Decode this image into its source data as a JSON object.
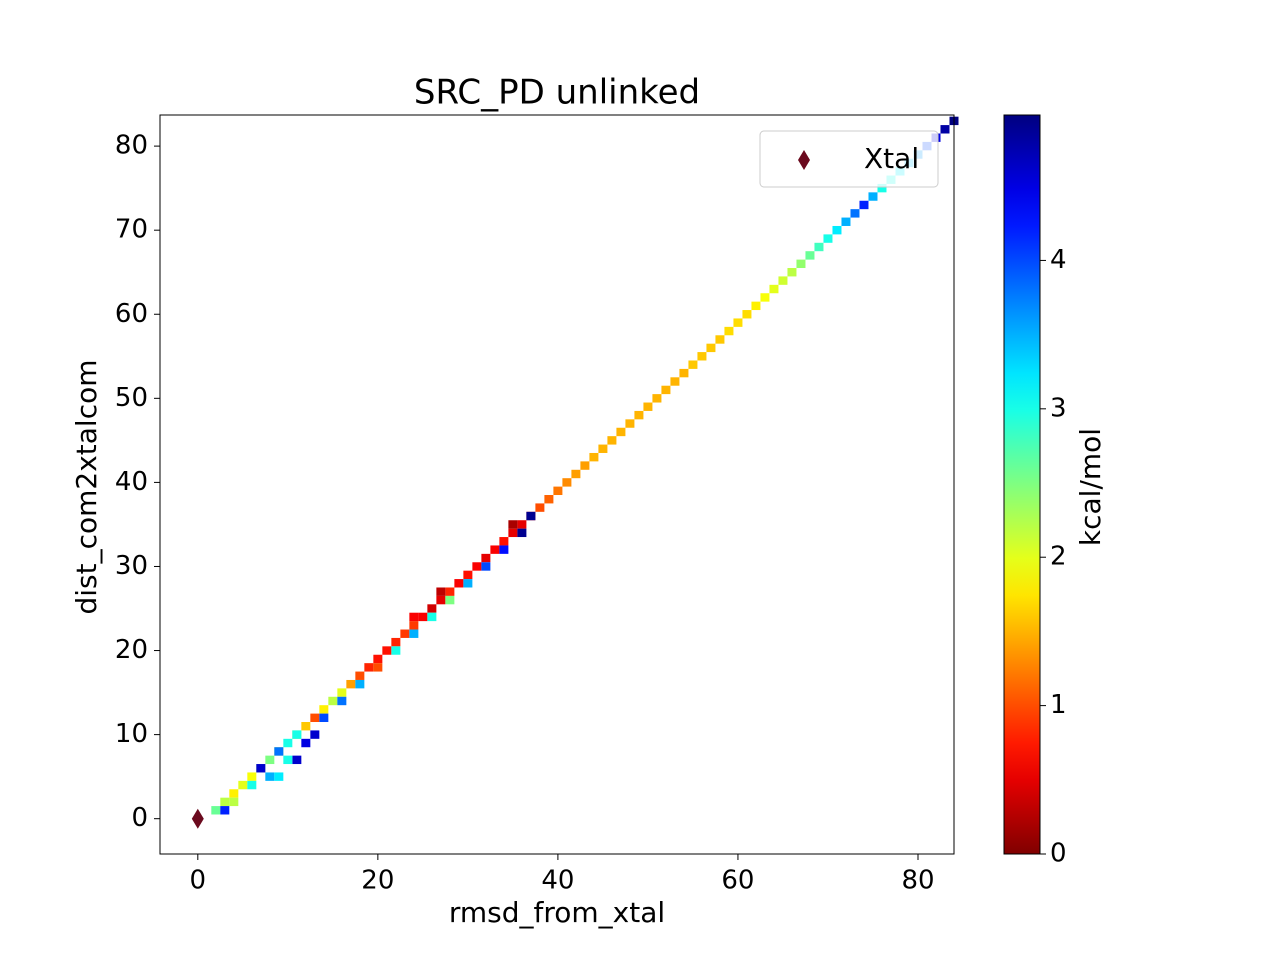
{
  "chart_data": {
    "type": "heatmap",
    "title": "SRC_PD unlinked",
    "x_label": "rmsd_from_xtal",
    "y_label": "dist_com2xtalcom",
    "xlim": [
      -4.2,
      84
    ],
    "ylim": [
      -4.2,
      83.7
    ],
    "xticks": [
      0,
      20,
      40,
      60,
      80
    ],
    "yticks": [
      0,
      10,
      20,
      30,
      40,
      50,
      60,
      70,
      80
    ],
    "x": [
      2,
      3,
      4,
      5,
      6,
      7,
      8,
      9,
      10,
      11,
      12,
      13,
      14,
      15,
      16,
      17,
      18,
      19,
      20,
      21,
      22,
      23,
      24,
      25,
      26,
      27,
      28,
      29,
      30,
      31,
      32,
      33,
      34,
      35,
      36,
      37,
      38,
      39,
      40,
      41,
      42,
      43,
      44,
      45,
      46,
      47,
      48,
      49,
      50,
      51,
      52,
      53,
      54,
      55,
      56,
      57,
      58,
      59,
      60,
      61,
      62,
      63,
      64,
      65,
      66,
      67,
      68,
      69,
      70,
      71,
      72,
      73,
      74,
      75,
      76,
      77,
      78,
      79,
      80,
      81,
      82,
      83,
      84,
      3,
      4,
      6,
      8,
      9,
      11,
      10,
      12,
      13,
      14,
      16,
      18,
      20,
      22,
      24,
      26,
      28,
      30,
      32,
      34,
      36,
      37,
      24,
      27,
      35,
      7,
      9,
      11
    ],
    "y": [
      1,
      2,
      3,
      4,
      5,
      6,
      7,
      8,
      9,
      10,
      11,
      12,
      13,
      14,
      15,
      16,
      17,
      18,
      19,
      20,
      21,
      22,
      23,
      24,
      25,
      26,
      27,
      28,
      29,
      30,
      31,
      32,
      33,
      34,
      35,
      36,
      37,
      38,
      39,
      40,
      41,
      42,
      43,
      44,
      45,
      46,
      47,
      48,
      49,
      50,
      51,
      52,
      53,
      54,
      55,
      56,
      57,
      58,
      59,
      60,
      61,
      62,
      63,
      64,
      65,
      66,
      67,
      68,
      69,
      70,
      71,
      72,
      73,
      74,
      75,
      76,
      77,
      78,
      79,
      80,
      81,
      82,
      83,
      1,
      2,
      4,
      5,
      5,
      7,
      7,
      9,
      10,
      12,
      14,
      16,
      18,
      20,
      22,
      24,
      26,
      28,
      30,
      32,
      34,
      36,
      24,
      27,
      35,
      6,
      8,
      10
    ],
    "values": [
      2.6,
      2.2,
      1.8,
      2.0,
      1.9,
      2.4,
      2.5,
      2.2,
      3.0,
      2.3,
      1.6,
      1.0,
      1.8,
      2.2,
      2.0,
      1.4,
      1.0,
      0.8,
      0.7,
      0.7,
      0.8,
      0.9,
      0.9,
      0.6,
      0.4,
      0.5,
      0.8,
      0.6,
      0.7,
      0.6,
      0.5,
      0.6,
      0.7,
      0.5,
      0.5,
      0.7,
      1.0,
      1.1,
      1.2,
      1.3,
      1.4,
      1.4,
      1.5,
      1.5,
      1.5,
      1.5,
      1.5,
      1.5,
      1.5,
      1.5,
      1.5,
      1.5,
      1.5,
      1.6,
      1.6,
      1.6,
      1.6,
      1.7,
      1.7,
      1.7,
      1.8,
      1.9,
      2.0,
      2.1,
      2.2,
      2.4,
      2.6,
      2.8,
      3.0,
      3.2,
      3.5,
      3.8,
      4.2,
      3.5,
      3.0,
      3.0,
      3.2,
      3.4,
      3.6,
      4.0,
      4.5,
      4.8,
      5.0,
      4.2,
      2.2,
      3.0,
      3.5,
      3.2,
      4.6,
      3.0,
      4.5,
      4.6,
      4.0,
      3.8,
      3.5,
      1.0,
      3.0,
      3.5,
      3.0,
      2.5,
      3.5,
      4.0,
      4.3,
      4.9,
      4.9,
      0.6,
      0.3,
      0.2,
      4.6,
      3.8,
      3.0
    ],
    "colormap": "jet_r",
    "colorbar": {
      "label": "kcal/mol",
      "lim": [
        0,
        4.98
      ],
      "ticks": [
        0,
        1,
        2,
        3,
        4
      ]
    },
    "markers": [
      {
        "name": "Xtal",
        "x": 0,
        "y": 0,
        "color": "#6b0a1e",
        "shape": "diamond"
      }
    ],
    "legend": "upper right"
  }
}
